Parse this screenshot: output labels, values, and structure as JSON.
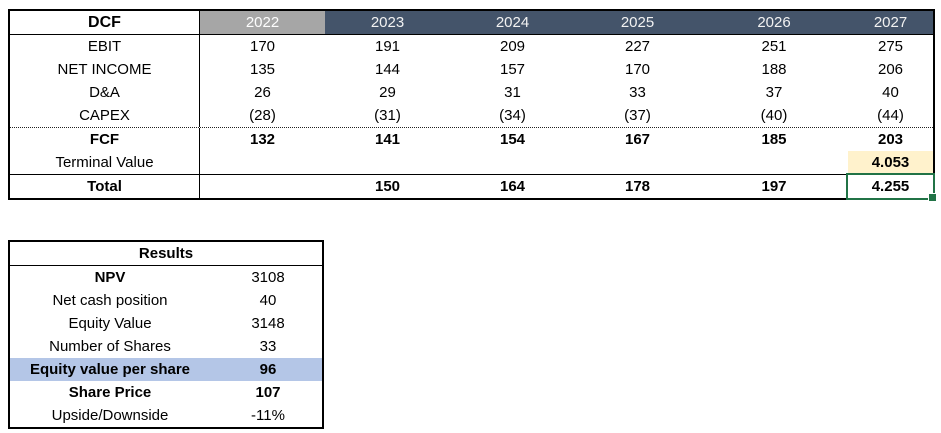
{
  "colors": {
    "year_header_bg": "#44546A",
    "current_year_header_bg": "#A6A6A6",
    "header_text": "#F2F2F2",
    "terminal_value_bg": "#FFF2CC",
    "highlight_row_bg": "#B4C6E7",
    "selection_border": "#217346"
  },
  "dcf": {
    "title": "DCF",
    "years": [
      "2022",
      "2023",
      "2024",
      "2025",
      "2026",
      "2027"
    ],
    "rows": [
      {
        "label": "EBIT",
        "values": [
          "170",
          "191",
          "209",
          "227",
          "251",
          "275"
        ]
      },
      {
        "label": "NET INCOME",
        "values": [
          "135",
          "144",
          "157",
          "170",
          "188",
          "206"
        ]
      },
      {
        "label": "D&A",
        "values": [
          "26",
          "29",
          "31",
          "33",
          "37",
          "40"
        ]
      },
      {
        "label": "CAPEX",
        "values": [
          "(28)",
          "(31)",
          "(34)",
          "(37)",
          "(40)",
          "(44)"
        ]
      },
      {
        "label": "FCF",
        "values": [
          "132",
          "141",
          "154",
          "167",
          "185",
          "203"
        ]
      },
      {
        "label": "Terminal Value",
        "values": [
          "",
          "",
          "",
          "",
          "",
          "4.053"
        ]
      },
      {
        "label": "Total",
        "values": [
          "",
          "150",
          "164",
          "178",
          "197",
          "4.255"
        ]
      }
    ]
  },
  "results": {
    "title": "Results",
    "rows": [
      {
        "label": "NPV",
        "value": "3108"
      },
      {
        "label": "Net cash position",
        "value": "40"
      },
      {
        "label": "Equity Value",
        "value": "3148"
      },
      {
        "label": "Number of Shares",
        "value": "33"
      },
      {
        "label": "Equity value per share",
        "value": "96"
      },
      {
        "label": "Share Price",
        "value": "107"
      },
      {
        "label": "Upside/Downside",
        "value": "-11%"
      }
    ]
  }
}
